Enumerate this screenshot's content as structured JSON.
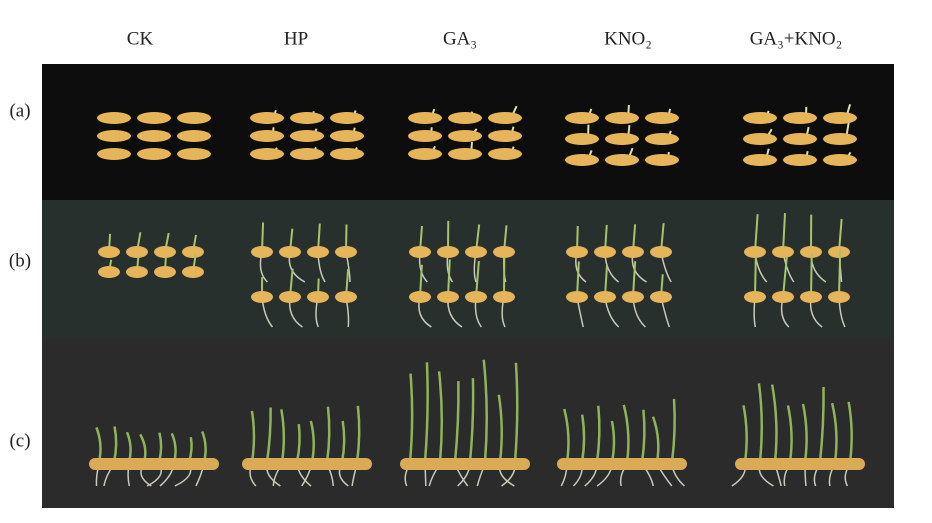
{
  "columns": [
    "CK",
    "HP",
    "GA₃",
    "KNO₂",
    "GA₃+KNO₂"
  ],
  "rows": [
    "(a)",
    "(b)",
    "(c)"
  ]
}
